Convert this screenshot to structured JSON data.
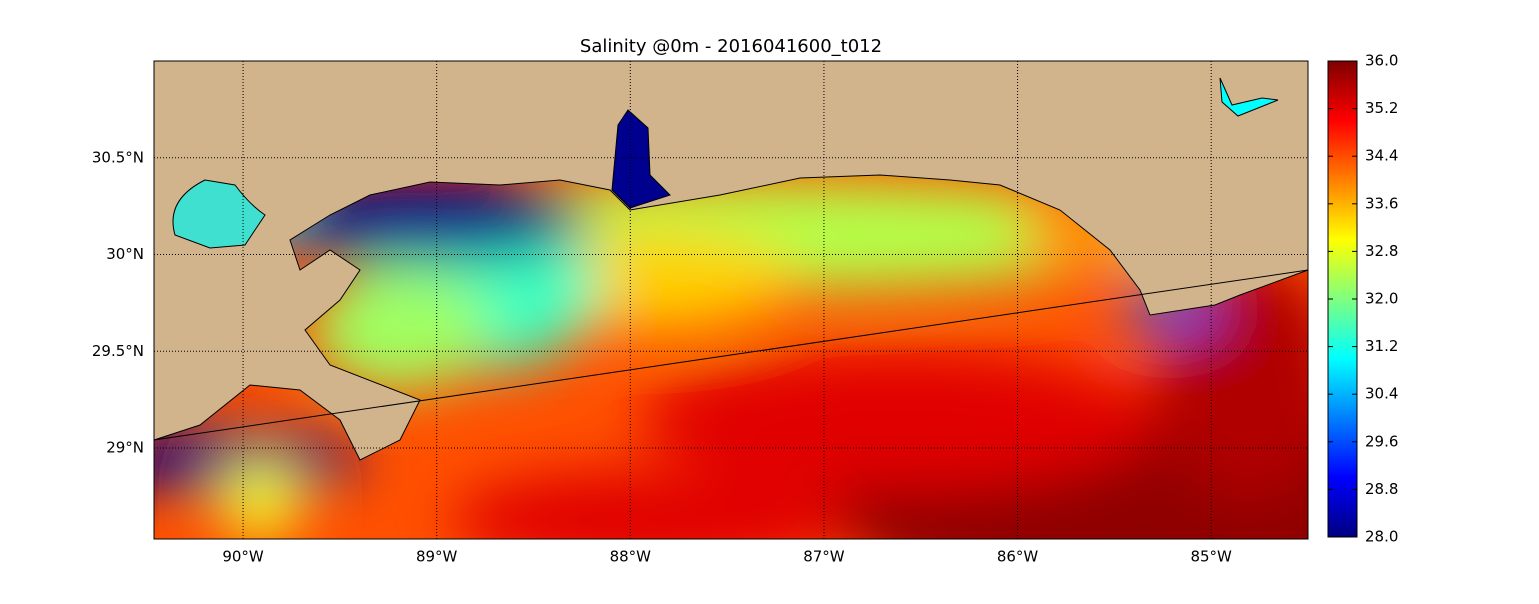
{
  "chart_data": {
    "type": "heatmap",
    "title": "Salinity @0m - 2016041600_t012",
    "xlim": [
      -90.46,
      -84.5
    ],
    "ylim": [
      28.53,
      31.0
    ],
    "xticks": [
      {
        "value": -90,
        "label": "90°W"
      },
      {
        "value": -89,
        "label": "89°W"
      },
      {
        "value": -88,
        "label": "88°W"
      },
      {
        "value": -87,
        "label": "87°W"
      },
      {
        "value": -86,
        "label": "86°W"
      },
      {
        "value": -85,
        "label": "85°W"
      }
    ],
    "yticks": [
      {
        "value": 29,
        "label": "29°N"
      },
      {
        "value": 29.5,
        "label": "29.5°N"
      },
      {
        "value": 30,
        "label": "30°N"
      },
      {
        "value": 30.5,
        "label": "30.5°N"
      }
    ],
    "grid": true,
    "colormap": "jet",
    "clim": [
      28,
      36
    ],
    "cticks": [
      {
        "value": 28,
        "label": "28.0"
      },
      28.8,
      29.6,
      30.4,
      31.2,
      {
        "value": 32,
        "label": "32.0"
      },
      32.8,
      33.6,
      34.4,
      35.2,
      {
        "value": 36,
        "label": "36.0"
      }
    ]
  }
}
